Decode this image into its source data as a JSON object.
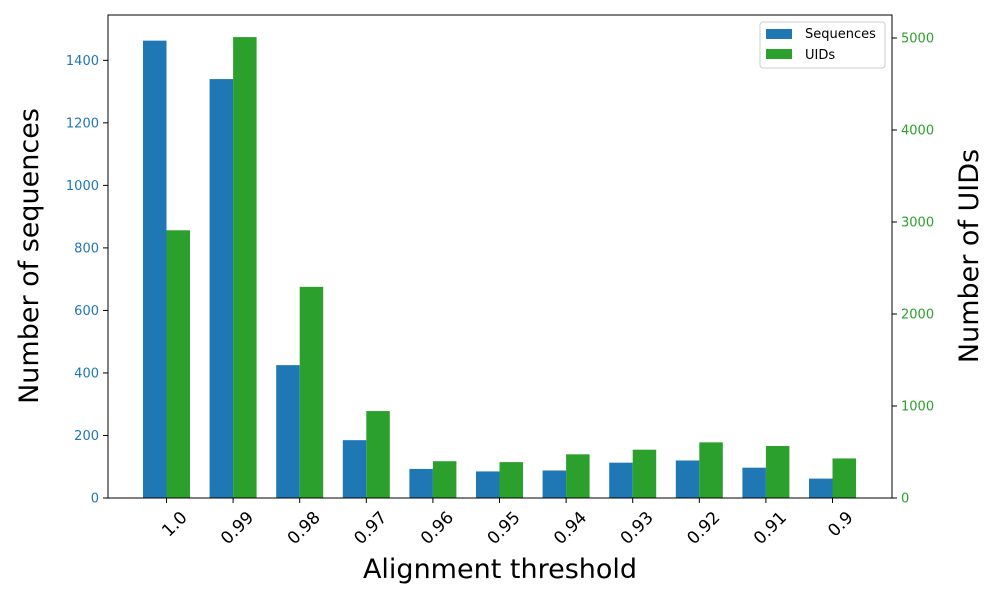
{
  "chart_data": {
    "type": "bar",
    "xlabel": "Alignment threshold",
    "ylabel_left": "Number of sequences",
    "ylabel_right": "Number of UIDs",
    "categories": [
      "1.0",
      "0.99",
      "0.98",
      "0.97",
      "0.96",
      "0.95",
      "0.94",
      "0.93",
      "0.92",
      "0.91",
      "0.9"
    ],
    "left_axis": {
      "ylim": [
        0,
        1545
      ],
      "ticks": [
        0,
        200,
        400,
        600,
        800,
        1000,
        1200,
        1400
      ],
      "color": "#1f77b4"
    },
    "right_axis": {
      "ylim": [
        0,
        5250
      ],
      "ticks": [
        0,
        1000,
        2000,
        3000,
        4000,
        5000
      ],
      "color": "#2ca02c"
    },
    "series": [
      {
        "name": "Sequences",
        "axis": "left",
        "color": "#1f77b4",
        "values": [
          1463,
          1340,
          425,
          185,
          93,
          85,
          88,
          113,
          120,
          97,
          62
        ]
      },
      {
        "name": "UIDs",
        "axis": "right",
        "color": "#2ca02c",
        "values": [
          2910,
          5010,
          2295,
          945,
          400,
          390,
          475,
          525,
          605,
          565,
          430
        ]
      }
    ],
    "legend": {
      "position": "top-right",
      "entries": [
        "Sequences",
        "UIDs"
      ]
    },
    "grid": false
  }
}
